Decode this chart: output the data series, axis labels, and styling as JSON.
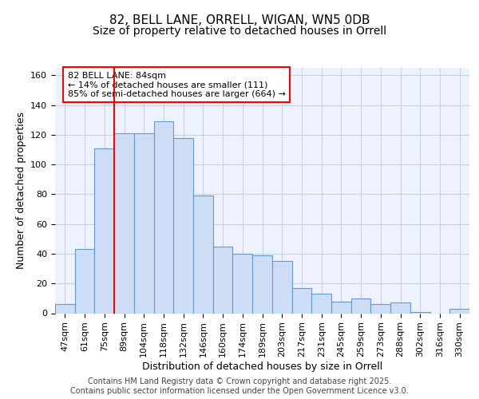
{
  "title1": "82, BELL LANE, ORRELL, WIGAN, WN5 0DB",
  "title2": "Size of property relative to detached houses in Orrell",
  "xlabel": "Distribution of detached houses by size in Orrell",
  "ylabel": "Number of detached properties",
  "categories": [
    "47sqm",
    "61sqm",
    "75sqm",
    "89sqm",
    "104sqm",
    "118sqm",
    "132sqm",
    "146sqm",
    "160sqm",
    "174sqm",
    "189sqm",
    "203sqm",
    "217sqm",
    "231sqm",
    "245sqm",
    "259sqm",
    "273sqm",
    "288sqm",
    "302sqm",
    "316sqm",
    "330sqm"
  ],
  "values": [
    6,
    43,
    111,
    121,
    121,
    129,
    118,
    79,
    45,
    40,
    39,
    35,
    17,
    13,
    8,
    10,
    6,
    7,
    1,
    0,
    3
  ],
  "bar_color": "#ccddf5",
  "bar_edge_color": "#6699cc",
  "vline_color": "red",
  "vline_x": 2.5,
  "ylim": [
    0,
    165
  ],
  "yticks": [
    0,
    20,
    40,
    60,
    80,
    100,
    120,
    140,
    160
  ],
  "grid_color": "#c8d0e8",
  "background_color": "#eef2fc",
  "annotation_line1": "82 BELL LANE: 84sqm",
  "annotation_line2": "← 14% of detached houses are smaller (111)",
  "annotation_line3": "85% of semi-detached houses are larger (664) →",
  "footer_text": "Contains HM Land Registry data © Crown copyright and database right 2025.\nContains public sector information licensed under the Open Government Licence v3.0.",
  "title1_fontsize": 11,
  "title2_fontsize": 10,
  "axis_label_fontsize": 9,
  "tick_fontsize": 8,
  "annotation_fontsize": 8,
  "footer_fontsize": 7
}
